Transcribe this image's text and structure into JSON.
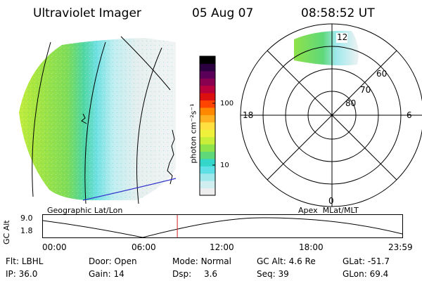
{
  "header": {
    "instrument": "Ultraviolet Imager",
    "date": "05 Aug 07",
    "time": "08:58:52 UT"
  },
  "colorbar": {
    "label": "photon cm⁻²s⁻¹",
    "tick_labels": [
      "100",
      "10"
    ],
    "colors": [
      "#eeeeee",
      "#cfeef0",
      "#9ee8ec",
      "#5fdfe6",
      "#33d6c8",
      "#5fd87a",
      "#8ee24a",
      "#c8ee3a",
      "#eef03a",
      "#ffe040",
      "#ffb020",
      "#ff8800",
      "#ff4400",
      "#dd1010",
      "#b8003c",
      "#8a0050",
      "#5a0058",
      "#2a0040",
      "#000000"
    ]
  },
  "left_panel": {
    "projection_label": "Geographic Lat/Lon"
  },
  "right_panel": {
    "projection_label": "Apex  MLat/MLT",
    "mlt_labels": {
      "top": "12",
      "left": "18",
      "right": "6",
      "bottom": "0"
    },
    "lat_labels": [
      "60",
      "70",
      "80"
    ]
  },
  "timeline": {
    "axis_title": "GC Alt",
    "y_labels": [
      "9.0",
      "1.8"
    ],
    "x_labels": [
      "00:00",
      "06:00",
      "12:00",
      "18:00",
      "23:59"
    ],
    "current_time_fraction": 0.374
  },
  "status": {
    "filter_label": "Flt:",
    "filter_value": "LBHL",
    "ip_label": "IP:",
    "ip_value": "36.0",
    "door_label": "Door:",
    "door_value": "Open",
    "gain_label": "Gain:",
    "gain_value": "14",
    "mode_label": "Mode:",
    "mode_value": "Normal",
    "dsp_label": "Dsp:",
    "dsp_value": "3.6",
    "gcalt_label": "GC Alt:",
    "gcalt_value": "4.6 Re",
    "seq_label": "Seq:",
    "seq_value": "39",
    "glat_label": "GLat:",
    "glat_value": "-51.7",
    "glon_label": "GLon:",
    "glon_value": "69.4"
  },
  "colors": {
    "coast_line": "#3333cc",
    "time_marker": "#d02020"
  }
}
